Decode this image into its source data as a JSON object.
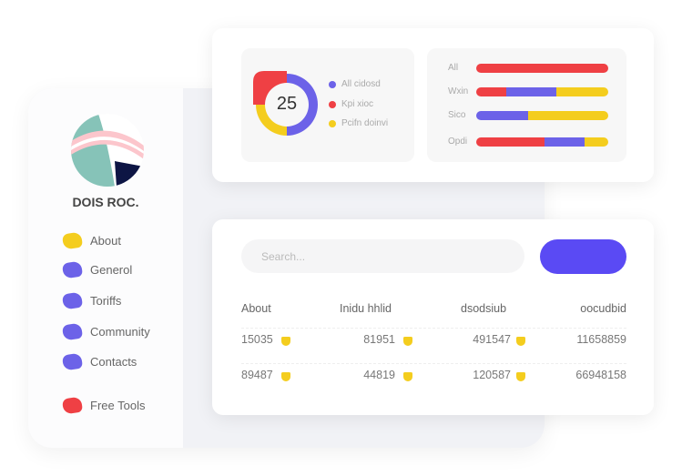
{
  "colors": {
    "red": "#ef4044",
    "blue": "#6c62e8",
    "yellow": "#f4cd1e",
    "accent": "#5a4af4"
  },
  "sidebar": {
    "brand": "DOIS ROC.",
    "items": [
      {
        "label": "About",
        "color": "#f4cd1e"
      },
      {
        "label": "Generol",
        "color": "#6c62e8"
      },
      {
        "label": "Toriffs",
        "color": "#6c62e8"
      },
      {
        "label": "Community",
        "color": "#6c62e8"
      },
      {
        "label": "Contacts",
        "color": "#6c62e8"
      },
      {
        "label": "Free Tools",
        "color": "#ef4044"
      }
    ]
  },
  "donut": {
    "value": "25",
    "legend": [
      "All cidosd",
      "Kpi xioc",
      "Pcifn doinvi"
    ]
  },
  "bars": [
    {
      "label": "All",
      "segments": [
        {
          "color": "red",
          "fraction": 1
        }
      ]
    },
    {
      "label": "Wxin",
      "segments": [
        {
          "color": "red",
          "fraction": 0.23
        },
        {
          "color": "blue",
          "fraction": 0.38
        },
        {
          "color": "yellow",
          "fraction": 0.39
        }
      ]
    },
    {
      "label": "Sico",
      "segments": [
        {
          "color": "blue",
          "fraction": 0.39
        },
        {
          "color": "yellow",
          "fraction": 0.61
        }
      ]
    },
    {
      "label": "Opdi",
      "segments": [
        {
          "color": "red",
          "fraction": 0.52
        },
        {
          "color": "blue",
          "fraction": 0.3
        },
        {
          "color": "yellow",
          "fraction": 0.18
        }
      ]
    }
  ],
  "search": {
    "placeholder": "Search..."
  },
  "table": {
    "headers": [
      "About",
      "Inidu hhlid",
      "dsodsiub",
      "oocudbid"
    ],
    "rows": [
      [
        "15035",
        "81951",
        "491547",
        "11658859"
      ],
      [
        "89487",
        "44819",
        "120587",
        "66948158"
      ]
    ]
  }
}
